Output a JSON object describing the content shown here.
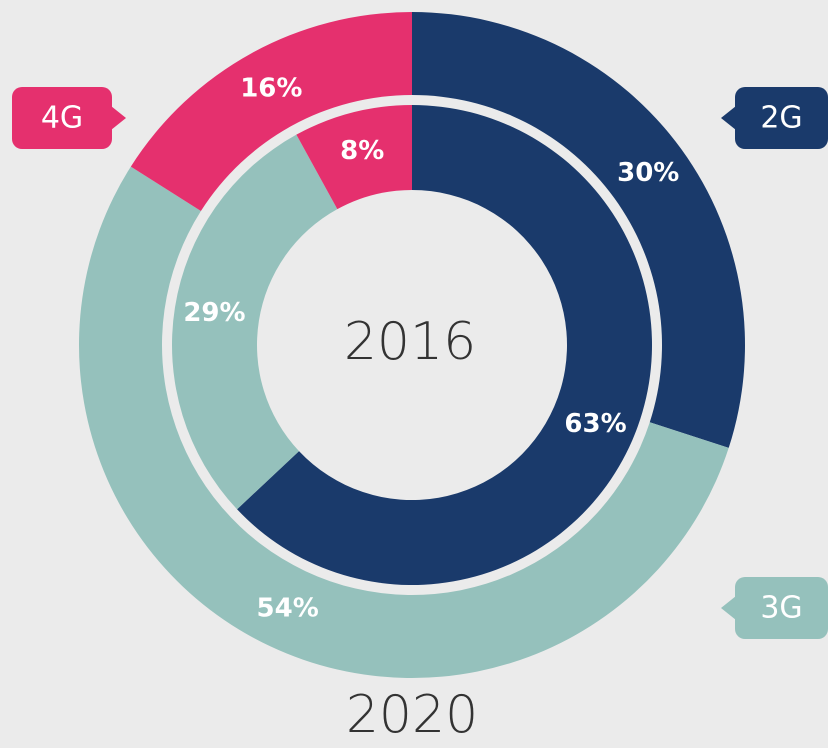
{
  "chart_data": {
    "type": "donut",
    "categories": [
      "2G",
      "3G",
      "4G"
    ],
    "colors": [
      "#1a3a6b",
      "#95c1bc",
      "#e5306e"
    ],
    "series": [
      {
        "name": "2016",
        "values": [
          63,
          29,
          8
        ],
        "value_labels": [
          "63%",
          "29%",
          "8%"
        ]
      },
      {
        "name": "2020",
        "values": [
          30,
          54,
          16
        ],
        "value_labels": [
          "30%",
          "54%",
          "16%"
        ]
      }
    ]
  }
}
